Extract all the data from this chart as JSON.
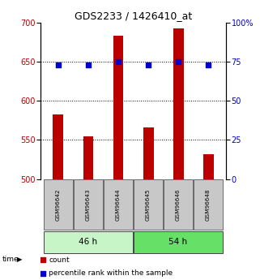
{
  "title": "GDS2233 / 1426410_at",
  "samples": [
    "GSM96642",
    "GSM96643",
    "GSM96644",
    "GSM96645",
    "GSM96646",
    "GSM96648"
  ],
  "counts": [
    582,
    554,
    683,
    566,
    692,
    532
  ],
  "percentiles": [
    73,
    73,
    75,
    73,
    75,
    73
  ],
  "group_colors": [
    "#c8f5c8",
    "#66e066"
  ],
  "group_boundaries": [
    [
      0,
      2,
      "46 h"
    ],
    [
      3,
      5,
      "54 h"
    ]
  ],
  "bar_color": "#bb0000",
  "percentile_color": "#0000cc",
  "ylim_left": [
    500,
    700
  ],
  "ylim_right": [
    0,
    100
  ],
  "yticks_left": [
    500,
    550,
    600,
    650,
    700
  ],
  "yticks_right": [
    0,
    25,
    50,
    75,
    100
  ],
  "grid_values": [
    550,
    600,
    650
  ],
  "background_color": "#ffffff",
  "bar_bottom": 500,
  "bar_width": 0.35,
  "label_fontsize": 7,
  "tick_fontsize": 7,
  "title_fontsize": 9
}
